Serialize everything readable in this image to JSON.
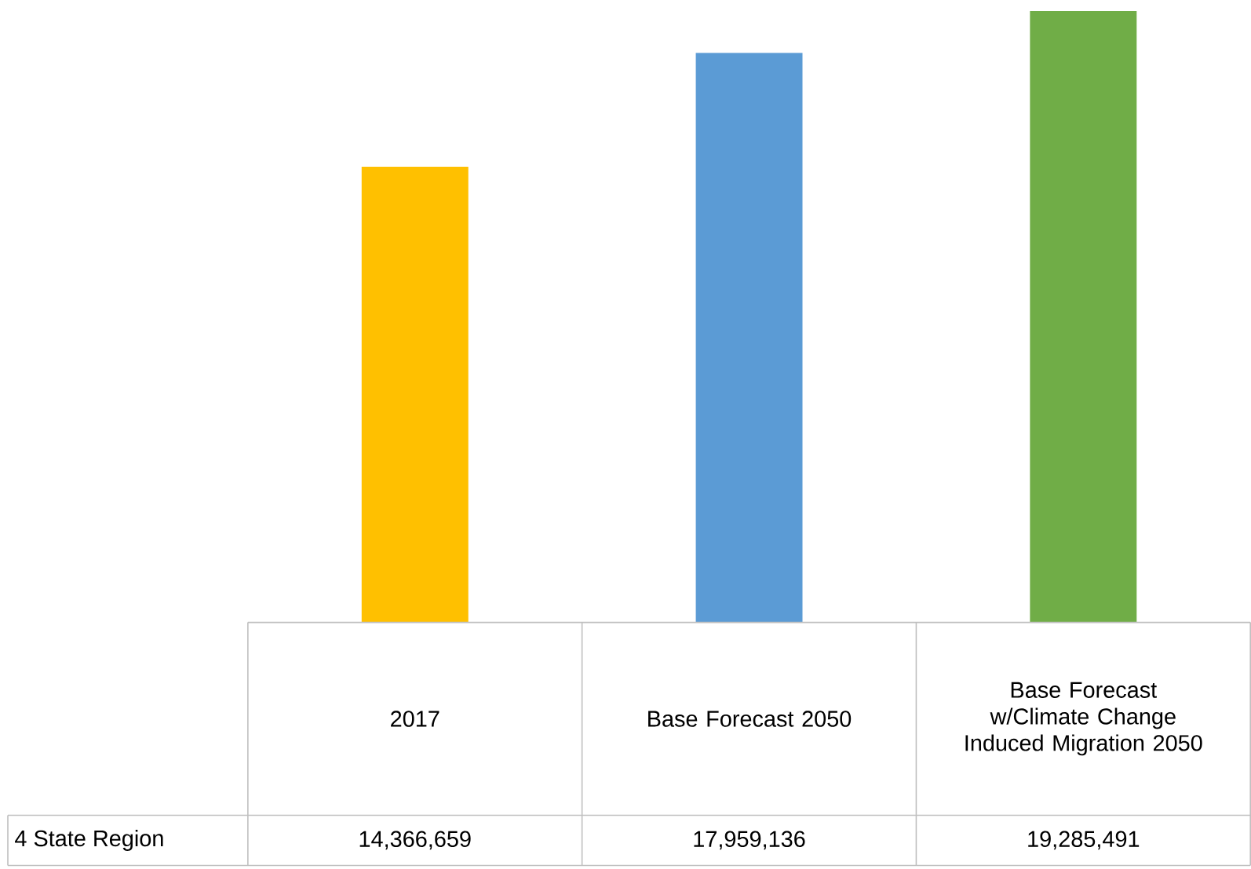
{
  "chart_data": {
    "type": "bar",
    "categories": [
      "2017",
      "Base Forecast 2050",
      "Base Forecast w/Climate Change Induced Migration 2050"
    ],
    "series": [
      {
        "name": "4 State Region",
        "values": [
          14366659,
          17959136,
          19285491
        ],
        "colors": [
          "#ffc000",
          "#5b9bd5",
          "#70ad47"
        ],
        "value_labels": [
          "14,366,659",
          "17,959,136",
          "19,285,491"
        ]
      }
    ]
  }
}
